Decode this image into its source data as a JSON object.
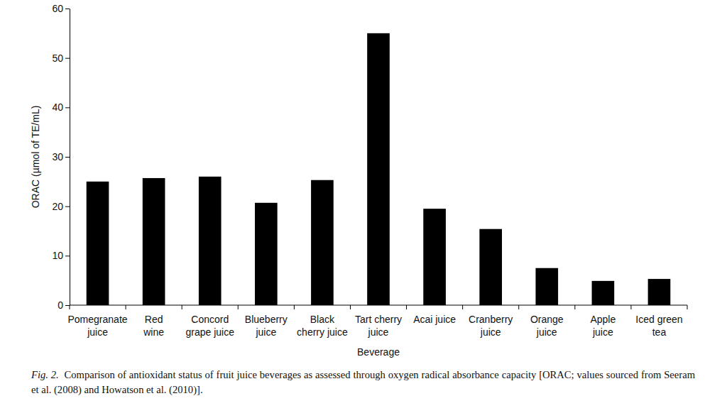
{
  "chart_data": {
    "type": "bar",
    "categories": [
      "Pomegranate\njuice",
      "Red\nwine",
      "Concord\ngrape juice",
      "Blueberry\njuice",
      "Black\ncherry juice",
      "Tart cherry\njuice",
      "Acai juice",
      "Cranberry\njuice",
      "Orange\njuice",
      "Apple\njuice",
      "Iced green\ntea"
    ],
    "values": [
      25,
      25.7,
      26,
      20.7,
      25.3,
      55,
      19.5,
      15.4,
      7.5,
      4.9,
      5.3
    ],
    "color": "#000000",
    "x_label": "Beverage",
    "y_label": "ORAC (µmol of TE/mL)",
    "caption_label": "Fig. 2.",
    "caption": "Comparison of antioxidant status of fruit juice beverages as assessed through oxygen radical absorbance capacity [ORAC; values sourced from Seeram et al. (2008) and Howatson et al. (2010)].",
    "ylim": [
      0,
      60
    ],
    "yticks": [
      0,
      10,
      20,
      30,
      40,
      50,
      60
    ],
    "grid": false
  }
}
